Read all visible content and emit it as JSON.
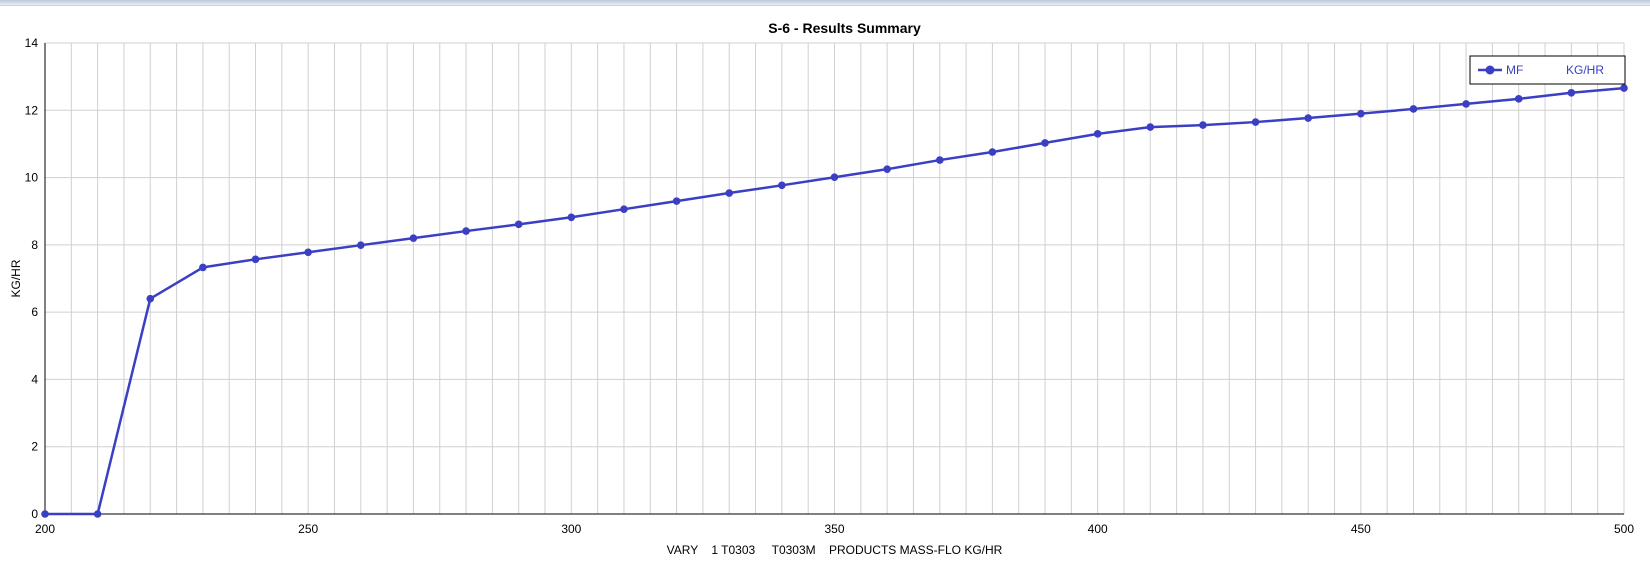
{
  "chart_data": {
    "type": "line",
    "title": "S-6 - Results Summary",
    "xlabel": "VARY    1 T0303     T0303M    PRODUCTS MASS-FLO KG/HR",
    "ylabel": "KG/HR",
    "xlim": [
      200,
      500
    ],
    "ylim": [
      0,
      14
    ],
    "x_ticks": [
      200,
      250,
      300,
      350,
      400,
      450,
      500
    ],
    "y_ticks": [
      0,
      2,
      4,
      6,
      8,
      10,
      12,
      14
    ],
    "x_minor_step": 5,
    "y_minor_step": 2,
    "grid": true,
    "legend_position": "top-right",
    "series": [
      {
        "name": "MF",
        "unit": "KG/HR",
        "color": "#3b3fc4",
        "x": [
          200,
          210,
          220,
          230,
          240,
          250,
          260,
          270,
          280,
          290,
          300,
          310,
          320,
          330,
          340,
          350,
          360,
          370,
          380,
          390,
          400,
          410,
          420,
          430,
          440,
          450,
          460,
          470,
          480,
          490,
          500
        ],
        "values": [
          0,
          0,
          6.4,
          7.33,
          7.57,
          7.78,
          7.99,
          8.2,
          8.41,
          8.61,
          8.82,
          9.06,
          9.3,
          9.54,
          9.77,
          10.01,
          10.25,
          10.52,
          10.76,
          11.03,
          11.3,
          11.5,
          11.56,
          11.65,
          11.77,
          11.9,
          12.04,
          12.19,
          12.34,
          12.52,
          12.66
        ]
      }
    ]
  }
}
